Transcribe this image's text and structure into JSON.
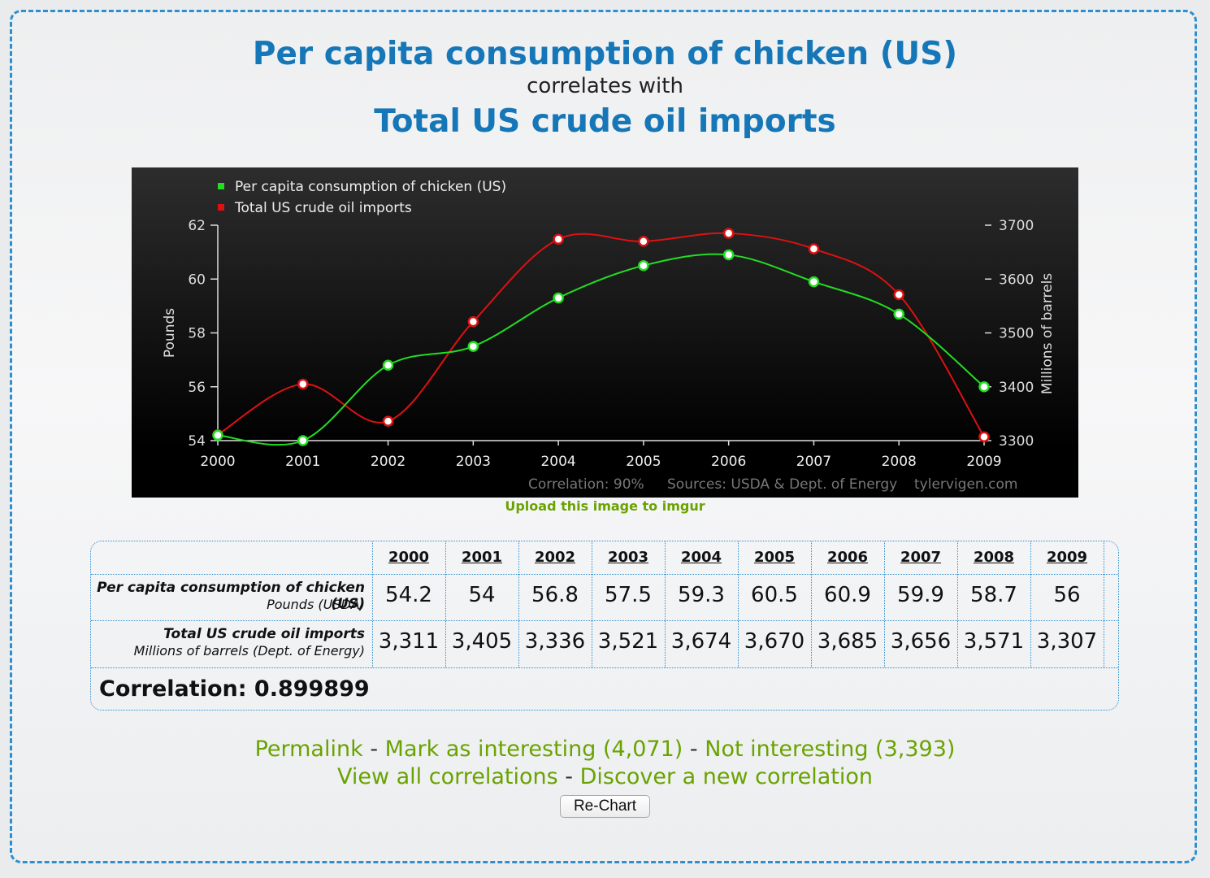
{
  "titles": {
    "series1": "Per capita consumption of chicken (US)",
    "connector": "correlates with",
    "series2": "Total US crude oil imports"
  },
  "chart_data": {
    "type": "line",
    "x": [
      "2000",
      "2001",
      "2002",
      "2003",
      "2004",
      "2005",
      "2006",
      "2007",
      "2008",
      "2009"
    ],
    "series": [
      {
        "name": "Per capita consumption of chicken (US)",
        "axis": "left",
        "color": "#22dd22",
        "values": [
          54.2,
          54,
          56.8,
          57.5,
          59.3,
          60.5,
          60.9,
          59.9,
          58.7,
          56
        ]
      },
      {
        "name": "Total US crude oil imports",
        "axis": "right",
        "color": "#dd1111",
        "values": [
          3311,
          3405,
          3336,
          3521,
          3674,
          3670,
          3685,
          3656,
          3571,
          3307
        ]
      }
    ],
    "ylabel_left": "Pounds",
    "ylim_left": [
      54,
      62
    ],
    "yticks_left": [
      54,
      56,
      58,
      60,
      62
    ],
    "ylabel_right": "Millions of barrels",
    "ylim_right": [
      3300,
      3700
    ],
    "yticks_right": [
      3300,
      3400,
      3500,
      3600,
      3700
    ],
    "legend_position": "top-left",
    "grid": false,
    "footer": {
      "correlation": "Correlation: 90%",
      "sources": "Sources: USDA & Dept. of Energy",
      "site": "tylervigen.com"
    }
  },
  "upload_link": "Upload this image to imgur",
  "table": {
    "years": [
      "2000",
      "2001",
      "2002",
      "2003",
      "2004",
      "2005",
      "2006",
      "2007",
      "2008",
      "2009"
    ],
    "rows": [
      {
        "label": "Per capita consumption of chicken (US)",
        "sublabel": "Pounds (USDA)",
        "values": [
          "54.2",
          "54",
          "56.8",
          "57.5",
          "59.3",
          "60.5",
          "60.9",
          "59.9",
          "58.7",
          "56"
        ]
      },
      {
        "label": "Total US crude oil imports",
        "sublabel": "Millions of barrels (Dept. of Energy)",
        "values": [
          "3,311",
          "3,405",
          "3,336",
          "3,521",
          "3,674",
          "3,670",
          "3,685",
          "3,656",
          "3,571",
          "3,307"
        ]
      }
    ],
    "correlation": "Correlation: 0.899899"
  },
  "links": {
    "permalink": "Permalink",
    "mark_interesting": "Mark as interesting (4,071)",
    "not_interesting": "Not interesting (3,393)",
    "view_all": "View all correlations",
    "discover": "Discover a new correlation",
    "separator": "-"
  },
  "recharts_button": "Re-Chart"
}
